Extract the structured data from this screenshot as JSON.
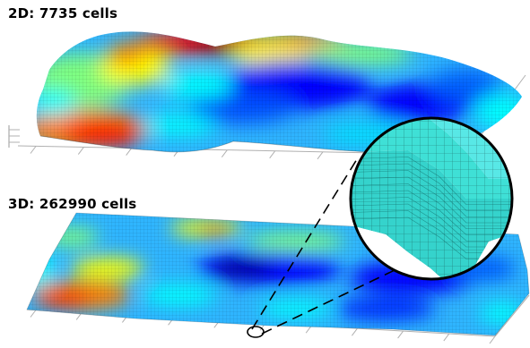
{
  "labels": {
    "top": "2D: 7735 cells",
    "bottom": "3D: 262990 cells"
  },
  "colormap": [
    "#00008f",
    "#0000ff",
    "#0080ff",
    "#00ffff",
    "#80ff80",
    "#ffff00",
    "#ff8000",
    "#ff0000",
    "#800000"
  ],
  "inset_color": "#3fe0d6",
  "background": "#ffffff"
}
